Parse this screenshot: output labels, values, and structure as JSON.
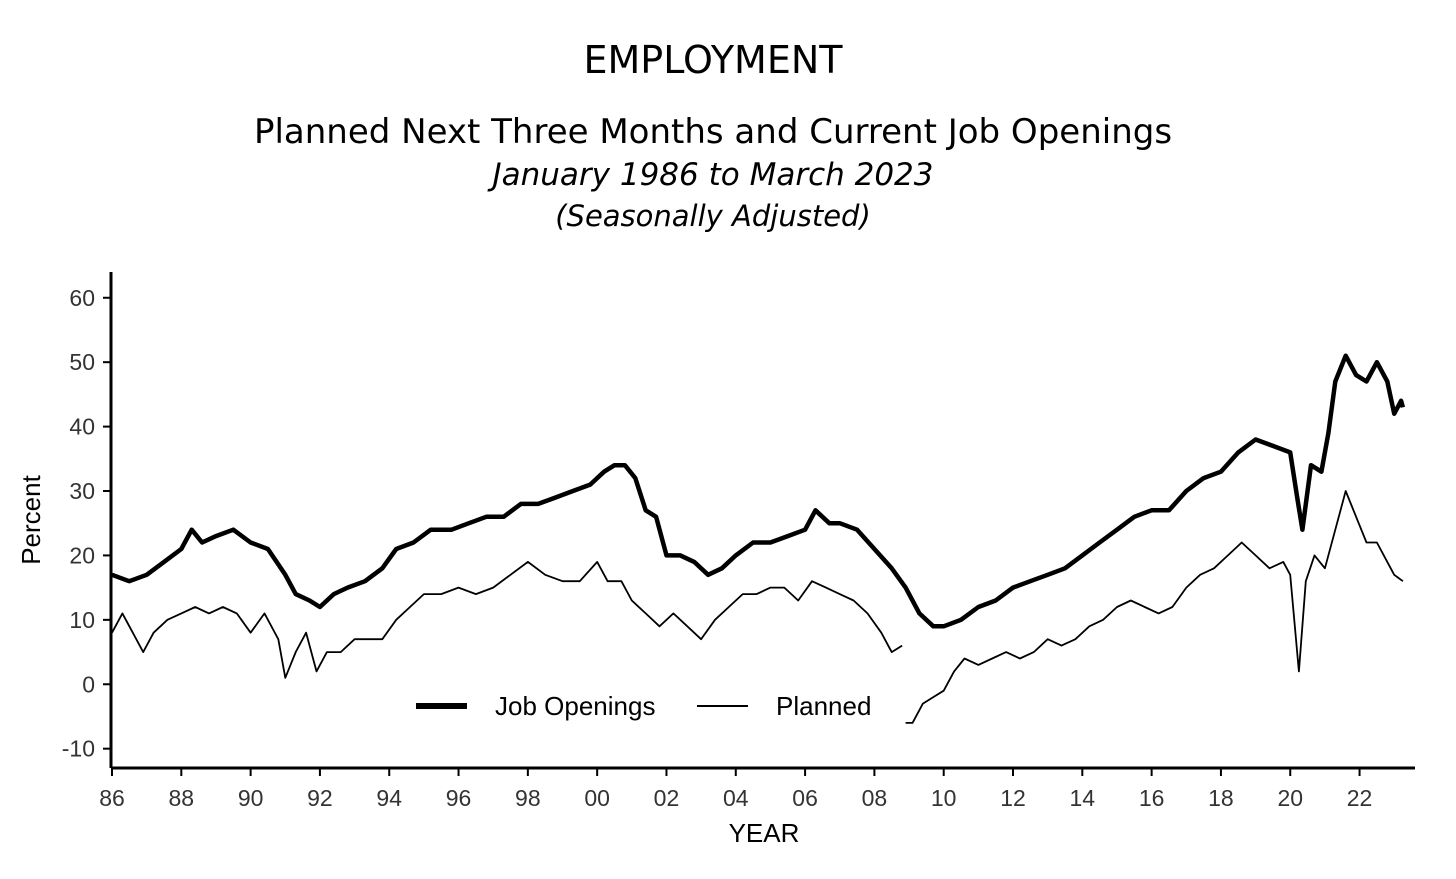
{
  "titles": {
    "main": "EMPLOYMENT",
    "subtitle": "Planned Next Three Months and Current Job Openings",
    "range": "January 1986 to March 2023",
    "note": "(Seasonally Adjusted)"
  },
  "chart_data": {
    "type": "line",
    "xlabel": "YEAR",
    "ylabel": "Percent",
    "xlim": [
      1986,
      2023.6
    ],
    "ylim": [
      -13,
      64
    ],
    "grid": false,
    "legend_position": "bottom-center",
    "x_tick_labels": [
      "86",
      "88",
      "90",
      "92",
      "94",
      "96",
      "98",
      "00",
      "02",
      "04",
      "06",
      "08",
      "10",
      "12",
      "14",
      "16",
      "18",
      "20",
      "22"
    ],
    "y_tick_labels": [
      "-10",
      "0",
      "10",
      "20",
      "30",
      "40",
      "50",
      "60"
    ],
    "y_ticks": [
      -10,
      0,
      10,
      20,
      30,
      40,
      50,
      60
    ],
    "series": [
      {
        "name": "Job Openings",
        "style": "thick",
        "points": [
          [
            1986.0,
            17
          ],
          [
            1986.5,
            16
          ],
          [
            1987.0,
            17
          ],
          [
            1987.5,
            19
          ],
          [
            1988.0,
            21
          ],
          [
            1988.3,
            24
          ],
          [
            1988.6,
            22
          ],
          [
            1989.0,
            23
          ],
          [
            1989.5,
            24
          ],
          [
            1990.0,
            22
          ],
          [
            1990.5,
            21
          ],
          [
            1991.0,
            17
          ],
          [
            1991.3,
            14
          ],
          [
            1991.7,
            13
          ],
          [
            1992.0,
            12
          ],
          [
            1992.4,
            14
          ],
          [
            1992.8,
            15
          ],
          [
            1993.3,
            16
          ],
          [
            1993.8,
            18
          ],
          [
            1994.2,
            21
          ],
          [
            1994.7,
            22
          ],
          [
            1995.2,
            24
          ],
          [
            1995.8,
            24
          ],
          [
            1996.3,
            25
          ],
          [
            1996.8,
            26
          ],
          [
            1997.3,
            26
          ],
          [
            1997.8,
            28
          ],
          [
            1998.3,
            28
          ],
          [
            1998.8,
            29
          ],
          [
            1999.3,
            30
          ],
          [
            1999.8,
            31
          ],
          [
            2000.2,
            33
          ],
          [
            2000.5,
            34
          ],
          [
            2000.8,
            34
          ],
          [
            2001.1,
            32
          ],
          [
            2001.4,
            27
          ],
          [
            2001.7,
            26
          ],
          [
            2002.0,
            20
          ],
          [
            2002.4,
            20
          ],
          [
            2002.8,
            19
          ],
          [
            2003.2,
            17
          ],
          [
            2003.6,
            18
          ],
          [
            2004.0,
            20
          ],
          [
            2004.5,
            22
          ],
          [
            2005.0,
            22
          ],
          [
            2005.5,
            23
          ],
          [
            2006.0,
            24
          ],
          [
            2006.3,
            27
          ],
          [
            2006.7,
            25
          ],
          [
            2007.0,
            25
          ],
          [
            2007.5,
            24
          ],
          [
            2008.0,
            21
          ],
          [
            2008.5,
            18
          ],
          [
            2008.9,
            15
          ],
          [
            2009.3,
            11
          ],
          [
            2009.7,
            9
          ],
          [
            2010.0,
            9
          ],
          [
            2010.5,
            10
          ],
          [
            2011.0,
            12
          ],
          [
            2011.5,
            13
          ],
          [
            2012.0,
            15
          ],
          [
            2012.5,
            16
          ],
          [
            2013.0,
            17
          ],
          [
            2013.5,
            18
          ],
          [
            2014.0,
            20
          ],
          [
            2014.5,
            22
          ],
          [
            2015.0,
            24
          ],
          [
            2015.5,
            26
          ],
          [
            2016.0,
            27
          ],
          [
            2016.5,
            27
          ],
          [
            2017.0,
            30
          ],
          [
            2017.5,
            32
          ],
          [
            2018.0,
            33
          ],
          [
            2018.5,
            36
          ],
          [
            2019.0,
            38
          ],
          [
            2019.5,
            37
          ],
          [
            2020.0,
            36
          ],
          [
            2020.2,
            29
          ],
          [
            2020.35,
            24
          ],
          [
            2020.6,
            34
          ],
          [
            2020.9,
            33
          ],
          [
            2021.1,
            39
          ],
          [
            2021.3,
            47
          ],
          [
            2021.6,
            51
          ],
          [
            2021.9,
            48
          ],
          [
            2022.2,
            47
          ],
          [
            2022.5,
            50
          ],
          [
            2022.8,
            47
          ],
          [
            2023.0,
            42
          ],
          [
            2023.2,
            44
          ],
          [
            2023.25,
            43
          ]
        ]
      },
      {
        "name": "Planned",
        "style": "thin",
        "points": [
          [
            1986.0,
            8
          ],
          [
            1986.3,
            11
          ],
          [
            1986.6,
            8
          ],
          [
            1986.9,
            5
          ],
          [
            1987.2,
            8
          ],
          [
            1987.6,
            10
          ],
          [
            1988.0,
            11
          ],
          [
            1988.4,
            12
          ],
          [
            1988.8,
            11
          ],
          [
            1989.2,
            12
          ],
          [
            1989.6,
            11
          ],
          [
            1990.0,
            8
          ],
          [
            1990.4,
            11
          ],
          [
            1990.8,
            7
          ],
          [
            1991.0,
            1
          ],
          [
            1991.3,
            5
          ],
          [
            1991.6,
            8
          ],
          [
            1991.9,
            2
          ],
          [
            1992.2,
            5
          ],
          [
            1992.6,
            5
          ],
          [
            1993.0,
            7
          ],
          [
            1993.4,
            7
          ],
          [
            1993.8,
            7
          ],
          [
            1994.2,
            10
          ],
          [
            1994.6,
            12
          ],
          [
            1995.0,
            14
          ],
          [
            1995.5,
            14
          ],
          [
            1996.0,
            15
          ],
          [
            1996.5,
            14
          ],
          [
            1997.0,
            15
          ],
          [
            1997.5,
            17
          ],
          [
            1998.0,
            19
          ],
          [
            1998.5,
            17
          ],
          [
            1999.0,
            16
          ],
          [
            1999.5,
            16
          ],
          [
            2000.0,
            19
          ],
          [
            2000.3,
            16
          ],
          [
            2000.7,
            16
          ],
          [
            2001.0,
            13
          ],
          [
            2001.4,
            11
          ],
          [
            2001.8,
            9
          ],
          [
            2002.2,
            11
          ],
          [
            2002.6,
            9
          ],
          [
            2003.0,
            7
          ],
          [
            2003.4,
            10
          ],
          [
            2003.8,
            12
          ],
          [
            2004.2,
            14
          ],
          [
            2004.6,
            14
          ],
          [
            2005.0,
            15
          ],
          [
            2005.4,
            15
          ],
          [
            2005.8,
            13
          ],
          [
            2006.2,
            16
          ],
          [
            2006.6,
            15
          ],
          [
            2007.0,
            14
          ],
          [
            2007.4,
            13
          ],
          [
            2007.8,
            11
          ],
          [
            2008.2,
            8
          ],
          [
            2008.5,
            5
          ],
          [
            2008.8,
            6
          ]
        ]
      },
      {
        "name": "",
        "style": "thin",
        "points": [
          [
            2008.9,
            -6
          ],
          [
            2009.1,
            -6
          ],
          [
            2009.4,
            -3
          ],
          [
            2009.7,
            -2
          ],
          [
            2010.0,
            -1
          ],
          [
            2010.3,
            2
          ],
          [
            2010.6,
            4
          ],
          [
            2011.0,
            3
          ],
          [
            2011.4,
            4
          ],
          [
            2011.8,
            5
          ],
          [
            2012.2,
            4
          ],
          [
            2012.6,
            5
          ],
          [
            2013.0,
            7
          ],
          [
            2013.4,
            6
          ],
          [
            2013.8,
            7
          ],
          [
            2014.2,
            9
          ],
          [
            2014.6,
            10
          ],
          [
            2015.0,
            12
          ],
          [
            2015.4,
            13
          ],
          [
            2015.8,
            12
          ],
          [
            2016.2,
            11
          ],
          [
            2016.6,
            12
          ],
          [
            2017.0,
            15
          ],
          [
            2017.4,
            17
          ],
          [
            2017.8,
            18
          ],
          [
            2018.2,
            20
          ],
          [
            2018.6,
            22
          ],
          [
            2019.0,
            20
          ],
          [
            2019.4,
            18
          ],
          [
            2019.8,
            19
          ],
          [
            2020.0,
            17
          ],
          [
            2020.25,
            2
          ],
          [
            2020.45,
            16
          ],
          [
            2020.7,
            20
          ],
          [
            2021.0,
            18
          ],
          [
            2021.3,
            24
          ],
          [
            2021.6,
            30
          ],
          [
            2021.9,
            26
          ],
          [
            2022.2,
            22
          ],
          [
            2022.5,
            22
          ],
          [
            2022.8,
            19
          ],
          [
            2023.0,
            17
          ],
          [
            2023.25,
            16
          ]
        ]
      }
    ]
  }
}
